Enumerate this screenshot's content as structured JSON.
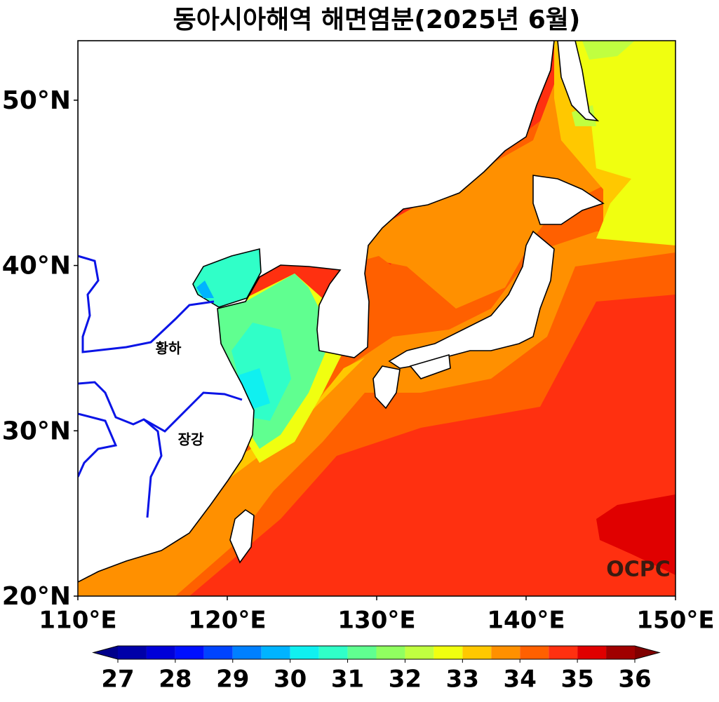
{
  "title": "동아시아해역 해면염분(2025년 6월)",
  "map": {
    "xlim": [
      110,
      150
    ],
    "ylim": [
      20,
      53.6
    ],
    "xticks": [
      {
        "value": 110,
        "label": "110°E"
      },
      {
        "value": 120,
        "label": "120°E"
      },
      {
        "value": 130,
        "label": "130°E"
      },
      {
        "value": 140,
        "label": "140°E"
      },
      {
        "value": 150,
        "label": "150°E"
      }
    ],
    "yticks": [
      {
        "value": 20,
        "label": "20°N"
      },
      {
        "value": 30,
        "label": "30°N"
      },
      {
        "value": 40,
        "label": "40°N"
      },
      {
        "value": 50,
        "label": "50°N"
      }
    ],
    "river_labels": [
      "황하",
      "장강"
    ],
    "logo": "OCPC"
  },
  "colorbar": {
    "levels": [
      27,
      27.5,
      28,
      28.5,
      29,
      29.5,
      30,
      30.5,
      31,
      31.5,
      32,
      32.5,
      33,
      33.5,
      34,
      34.5,
      35,
      35.5,
      36
    ],
    "colors": [
      "#0000a8",
      "#0000d8",
      "#0010ff",
      "#0044ff",
      "#0080ff",
      "#00b4ff",
      "#10f0f0",
      "#30ffc8",
      "#60ff90",
      "#90ff60",
      "#c0ff40",
      "#f0ff10",
      "#ffc800",
      "#ff9000",
      "#ff6000",
      "#ff3010",
      "#e00000",
      "#a00000"
    ],
    "under_color": "#00008b",
    "over_color": "#800000",
    "ticks": [
      27,
      28,
      29,
      30,
      31,
      32,
      33,
      34,
      35,
      36
    ]
  }
}
